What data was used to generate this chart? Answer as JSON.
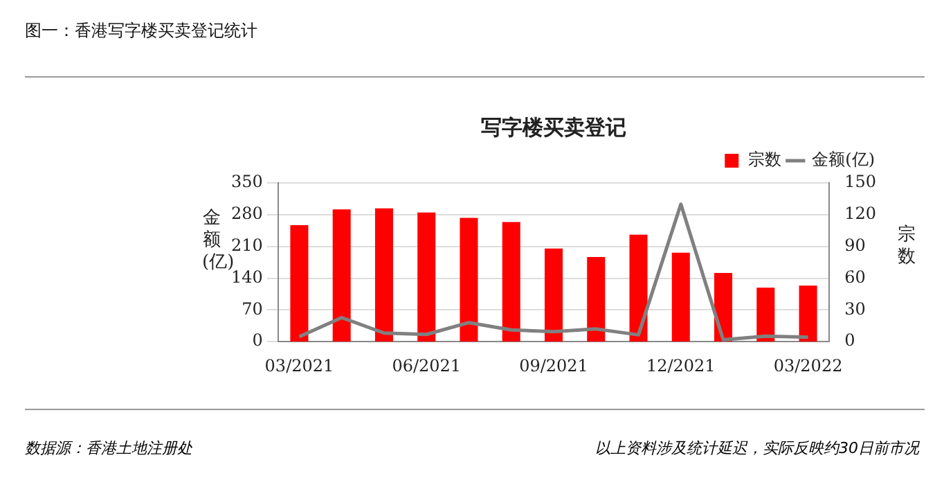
{
  "chart_data": {
    "type": "bar",
    "title": "图一：香港写字楼买卖登记统计",
    "subtitle": "写字楼买卖登记",
    "ylabel": "金额(亿)",
    "y2label": "宗数",
    "categories": [
      "03/2021",
      null,
      null,
      "06/2021",
      null,
      null,
      "09/2021",
      null,
      null,
      "12/2021",
      null,
      null,
      "03/2022"
    ],
    "series": [
      {
        "name": "宗数",
        "axis": "y2",
        "color": "#ff0000",
        "values": [
          110,
          125,
          126,
          122,
          117,
          113,
          88,
          80,
          101,
          84,
          65,
          51,
          53
        ]
      },
      {
        "name": "金额(亿)",
        "type": "line",
        "axis": "y",
        "color": "#808080",
        "values": [
          11,
          53,
          19,
          16,
          42,
          26,
          22,
          28,
          15,
          303,
          4,
          12,
          10
        ]
      }
    ],
    "ylim": [
      0,
      350
    ],
    "yticks": [
      0,
      70,
      140,
      210,
      280,
      350
    ],
    "y2lim": [
      0,
      150
    ],
    "y2ticks": [
      0,
      30,
      60,
      90,
      120,
      150
    ],
    "grid": "y",
    "legend": "top right",
    "marker": "none",
    "annotations": [
      "数据源：香港土地注册处",
      "以上资料涉及统计延迟，实际反映约30日前市况"
    ]
  }
}
